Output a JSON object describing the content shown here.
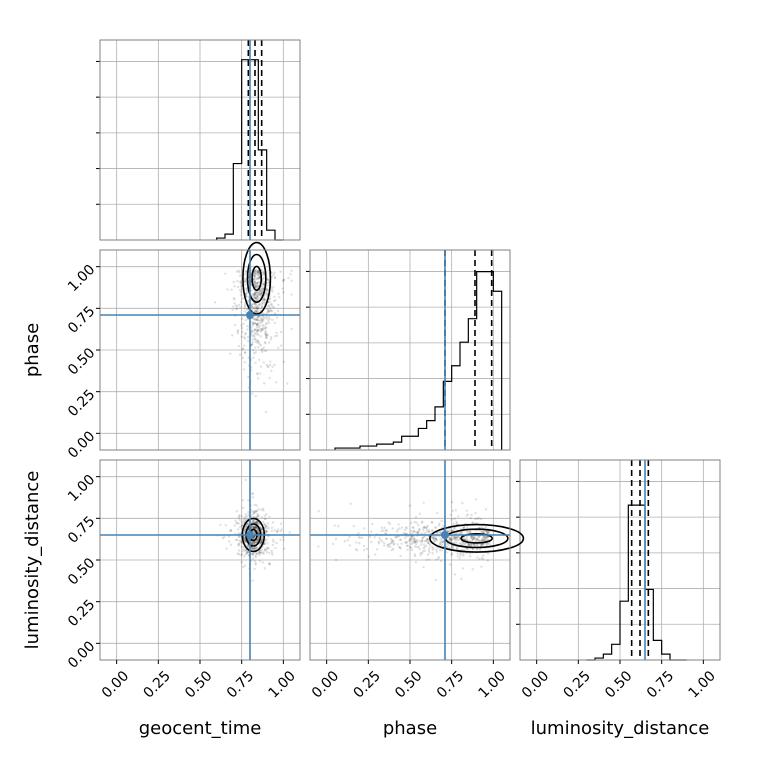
{
  "chart_data": {
    "type": "corner",
    "parameters": [
      "geocent_time",
      "phase",
      "luminosity_distance"
    ],
    "truths": {
      "geocent_time": 0.8,
      "phase": 0.71,
      "luminosity_distance": 0.65
    },
    "axis_range": [
      -0.1,
      1.1
    ],
    "tick_labels": [
      "0.00",
      "0.25",
      "0.50",
      "0.75",
      "1.00"
    ],
    "tick_values": [
      0.0,
      0.25,
      0.5,
      0.75,
      1.0
    ],
    "grid": true,
    "colors": {
      "truth": "#4682b4",
      "hist": "#000000",
      "frame": "#808080",
      "grid": "#b0b0b0"
    },
    "histograms": {
      "geocent_time": {
        "bin_edges": [
          0.6,
          0.65,
          0.7,
          0.75,
          0.8,
          0.85,
          0.9,
          0.95,
          1.0
        ],
        "counts": [
          0.01,
          0.03,
          0.39,
          0.92,
          0.92,
          0.46,
          0.05,
          0.0
        ],
        "quantiles": [
          0.79,
          0.83,
          0.87
        ]
      },
      "phase": {
        "bin_edges": [
          0.05,
          0.1,
          0.15,
          0.2,
          0.25,
          0.3,
          0.35,
          0.4,
          0.45,
          0.5,
          0.55,
          0.6,
          0.65,
          0.7,
          0.75,
          0.8,
          0.85,
          0.9,
          0.95,
          1.0,
          1.05
        ],
        "counts": [
          0.01,
          0.01,
          0.01,
          0.02,
          0.02,
          0.03,
          0.03,
          0.04,
          0.07,
          0.07,
          0.11,
          0.15,
          0.22,
          0.35,
          0.43,
          0.55,
          0.67,
          0.91,
          0.91,
          0.81
        ],
        "quantiles": [
          0.71,
          0.89,
          0.99
        ]
      },
      "luminosity_distance": {
        "bin_edges": [
          0.3,
          0.35,
          0.4,
          0.45,
          0.5,
          0.55,
          0.6,
          0.65,
          0.7,
          0.75,
          0.8,
          0.85,
          0.9
        ],
        "counts": [
          0.0,
          0.01,
          0.03,
          0.08,
          0.3,
          0.79,
          0.79,
          0.36,
          0.1,
          0.03,
          0.0,
          0.0
        ],
        "quantiles": [
          0.57,
          0.62,
          0.67
        ]
      }
    },
    "pairs": [
      {
        "x": "geocent_time",
        "y": "phase",
        "center": [
          0.84,
          0.93
        ],
        "spread": [
          0.05,
          0.13
        ],
        "levels": [
          1.0,
          2.0,
          3.0
        ]
      },
      {
        "x": "geocent_time",
        "y": "luminosity_distance",
        "center": [
          0.82,
          0.65
        ],
        "spread": [
          0.04,
          0.06
        ],
        "levels": [
          1.0,
          2.0,
          3.0
        ]
      },
      {
        "x": "phase",
        "y": "luminosity_distance",
        "center": [
          0.9,
          0.63
        ],
        "spread": [
          0.17,
          0.05
        ],
        "levels": [
          1.0,
          2.0,
          3.0
        ]
      }
    ]
  }
}
